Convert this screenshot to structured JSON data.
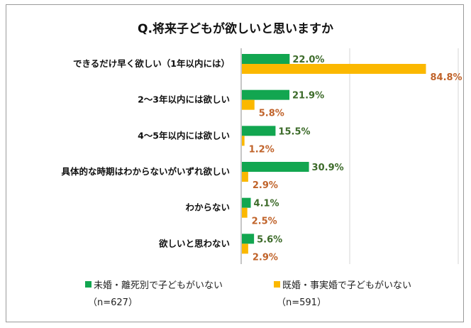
{
  "chart_data": {
    "type": "bar",
    "orientation": "horizontal",
    "title": "Q.将来子どもが欲しいと思いますか",
    "categories": [
      "できるだけ早く欲しい（1年以内には）",
      "2～3年以内には欲しい",
      "4～5年以内には欲しい",
      "具体的な時期はわからないがいずれ欲しい",
      "わからない",
      "欲しいと思わない"
    ],
    "series": [
      {
        "name": "未婚・離死別で子どもがいない",
        "n_label": "（n=627）",
        "color": "#12a650",
        "values": [
          22.0,
          21.9,
          15.5,
          30.9,
          4.1,
          5.6
        ],
        "labels": [
          "22.0%",
          "21.9%",
          "15.5%",
          "30.9%",
          "4.1%",
          "5.6%"
        ]
      },
      {
        "name": "既婚・事実婚で子どもがいない",
        "n_label": "（n=591）",
        "color": "#fbb800",
        "values": [
          84.8,
          5.8,
          1.2,
          2.9,
          2.5,
          2.9
        ],
        "labels": [
          "84.8%",
          "5.8%",
          "1.2%",
          "2.9%",
          "2.5%",
          "2.9%"
        ]
      }
    ],
    "xlim": [
      0,
      100
    ],
    "grid": true,
    "legend_position": "bottom"
  }
}
